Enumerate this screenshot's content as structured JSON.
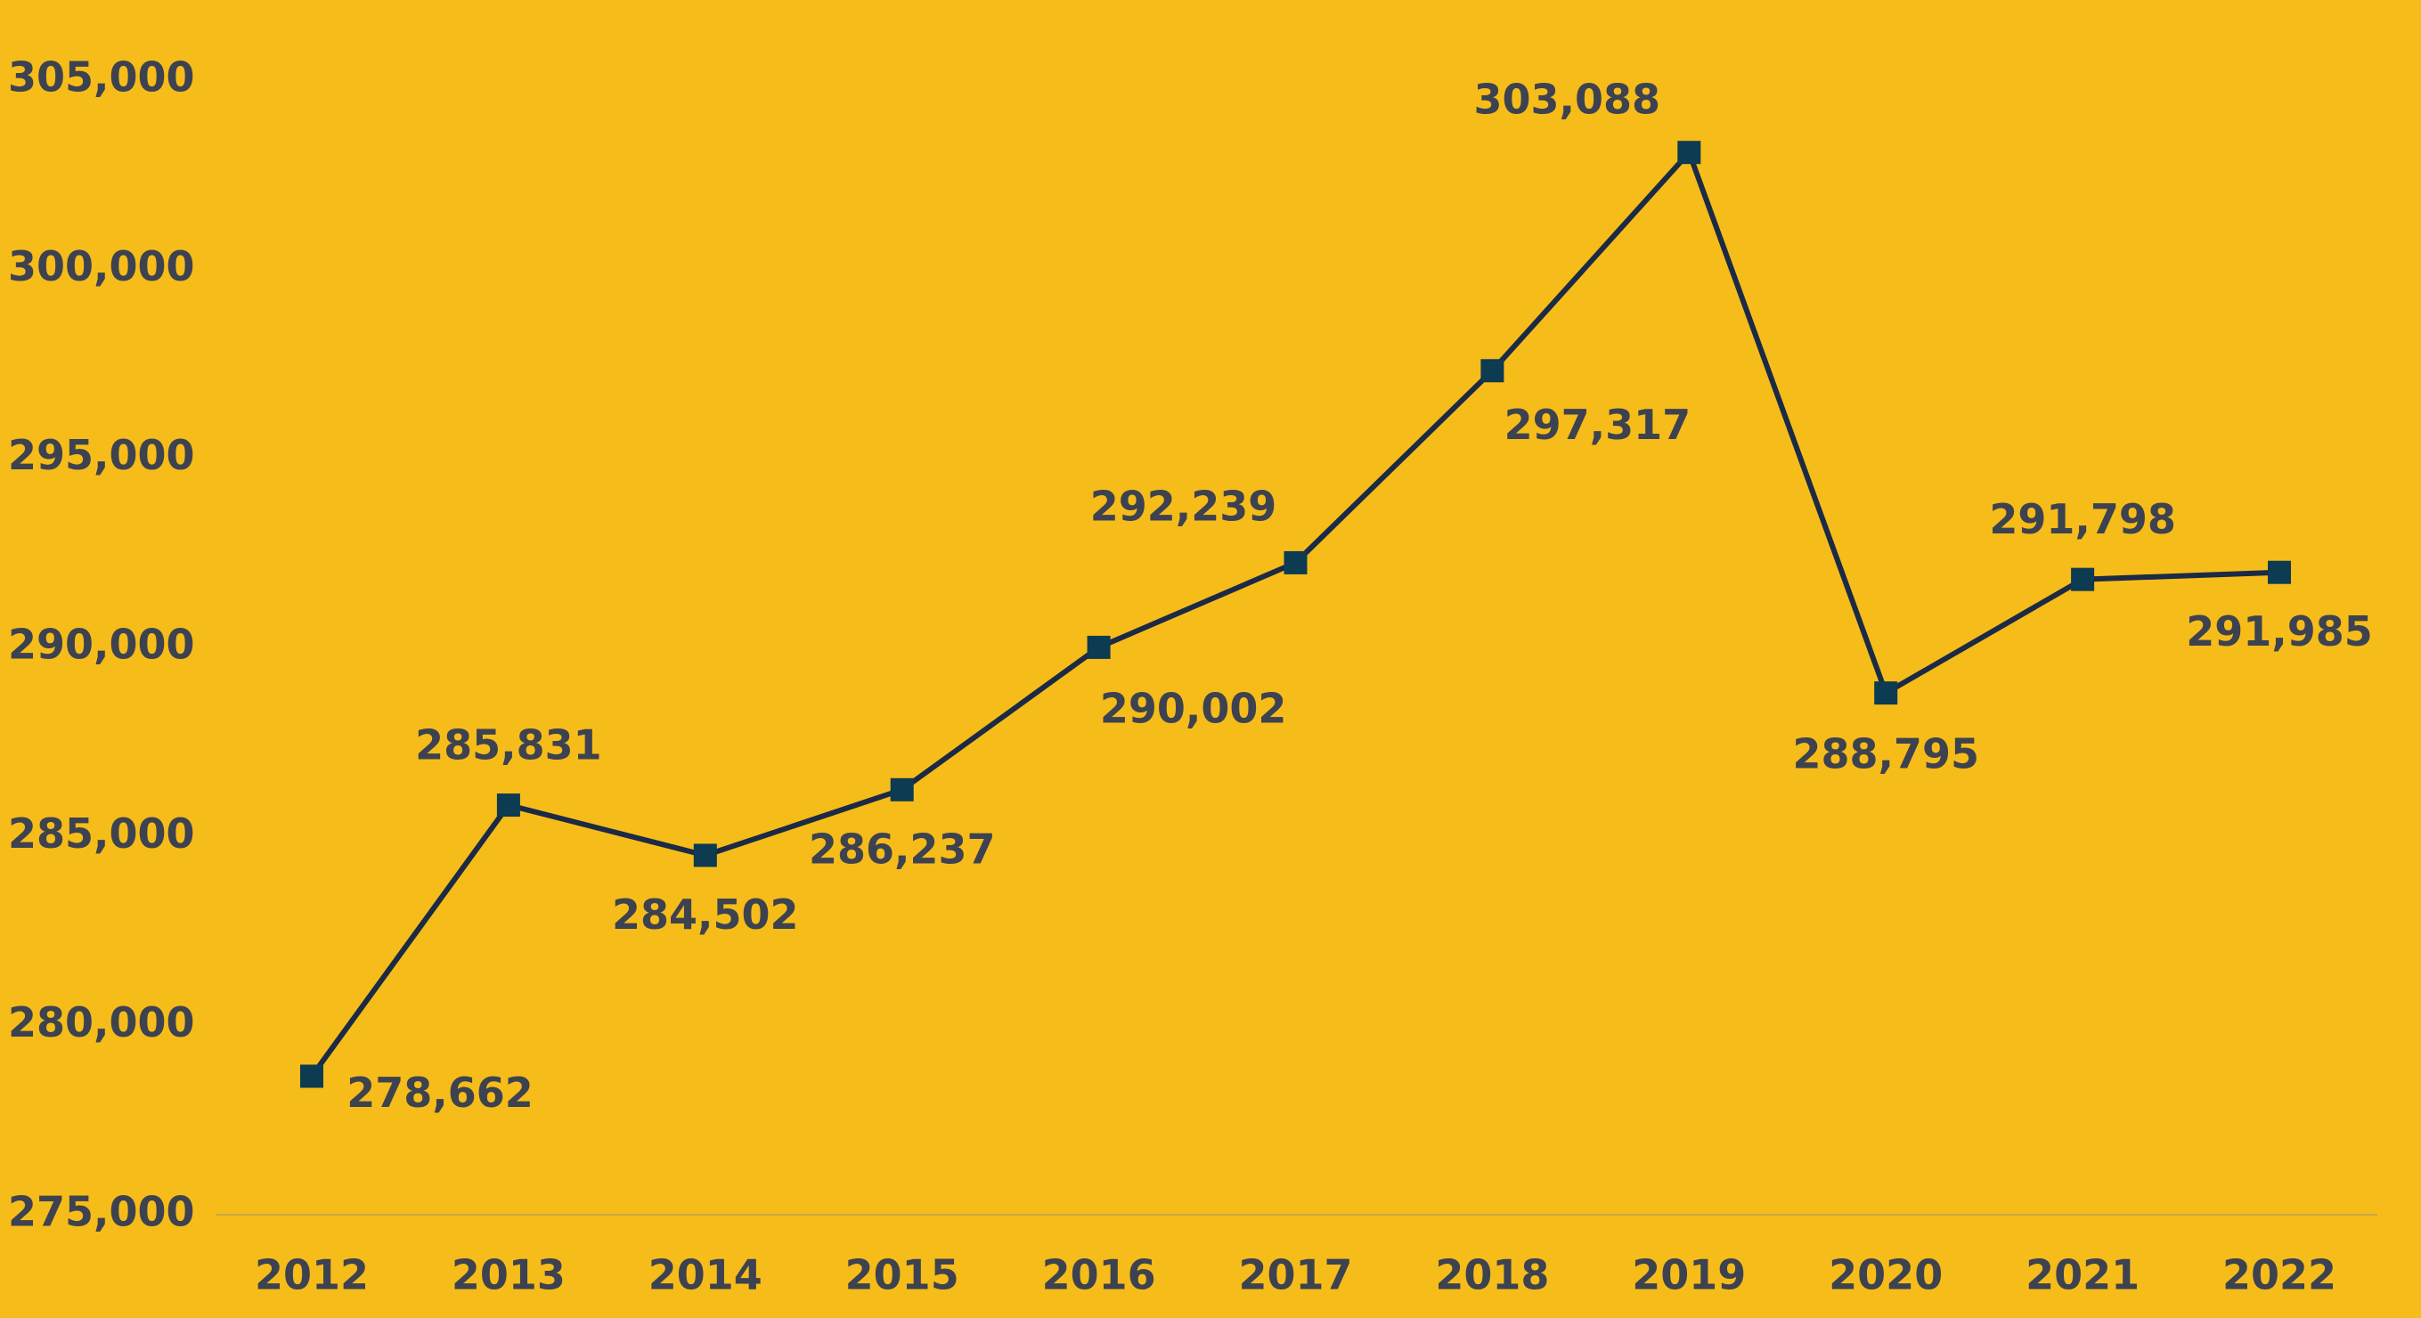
{
  "chart_data": {
    "type": "line",
    "x": [
      2012,
      2013,
      2014,
      2015,
      2016,
      2017,
      2018,
      2019,
      2020,
      2021,
      2022
    ],
    "xticks": [
      2012,
      2013,
      2014,
      2015,
      2016,
      2017,
      2018,
      2019,
      2020,
      2021,
      2022
    ],
    "xlim": [
      2012,
      2022
    ],
    "series": [
      {
        "color": "#1b2a45",
        "marker_color": "#0c3b52",
        "values": [
          278662,
          285831,
          284502,
          286237,
          290002,
          292239,
          297317,
          303088,
          288795,
          291798,
          291985
        ],
        "value_labels": [
          "278,662",
          "285,831",
          "284,502",
          "286,237",
          "290,002",
          "292,239",
          "297,317",
          "303,088",
          "288,795",
          "291,798",
          "291,985"
        ]
      }
    ],
    "ylim": [
      275000,
      305000
    ],
    "yticks": [
      {
        "value": 275000,
        "label": "275,000"
      },
      {
        "value": 280000,
        "label": "280,000"
      },
      {
        "value": 285000,
        "label": "285,000"
      },
      {
        "value": 290000,
        "label": "290,000"
      },
      {
        "value": 295000,
        "label": "295,000"
      },
      {
        "value": 300000,
        "label": "300,000"
      },
      {
        "value": 305000,
        "label": "305,000"
      }
    ],
    "grid": false,
    "background": "#f6bc1a"
  }
}
